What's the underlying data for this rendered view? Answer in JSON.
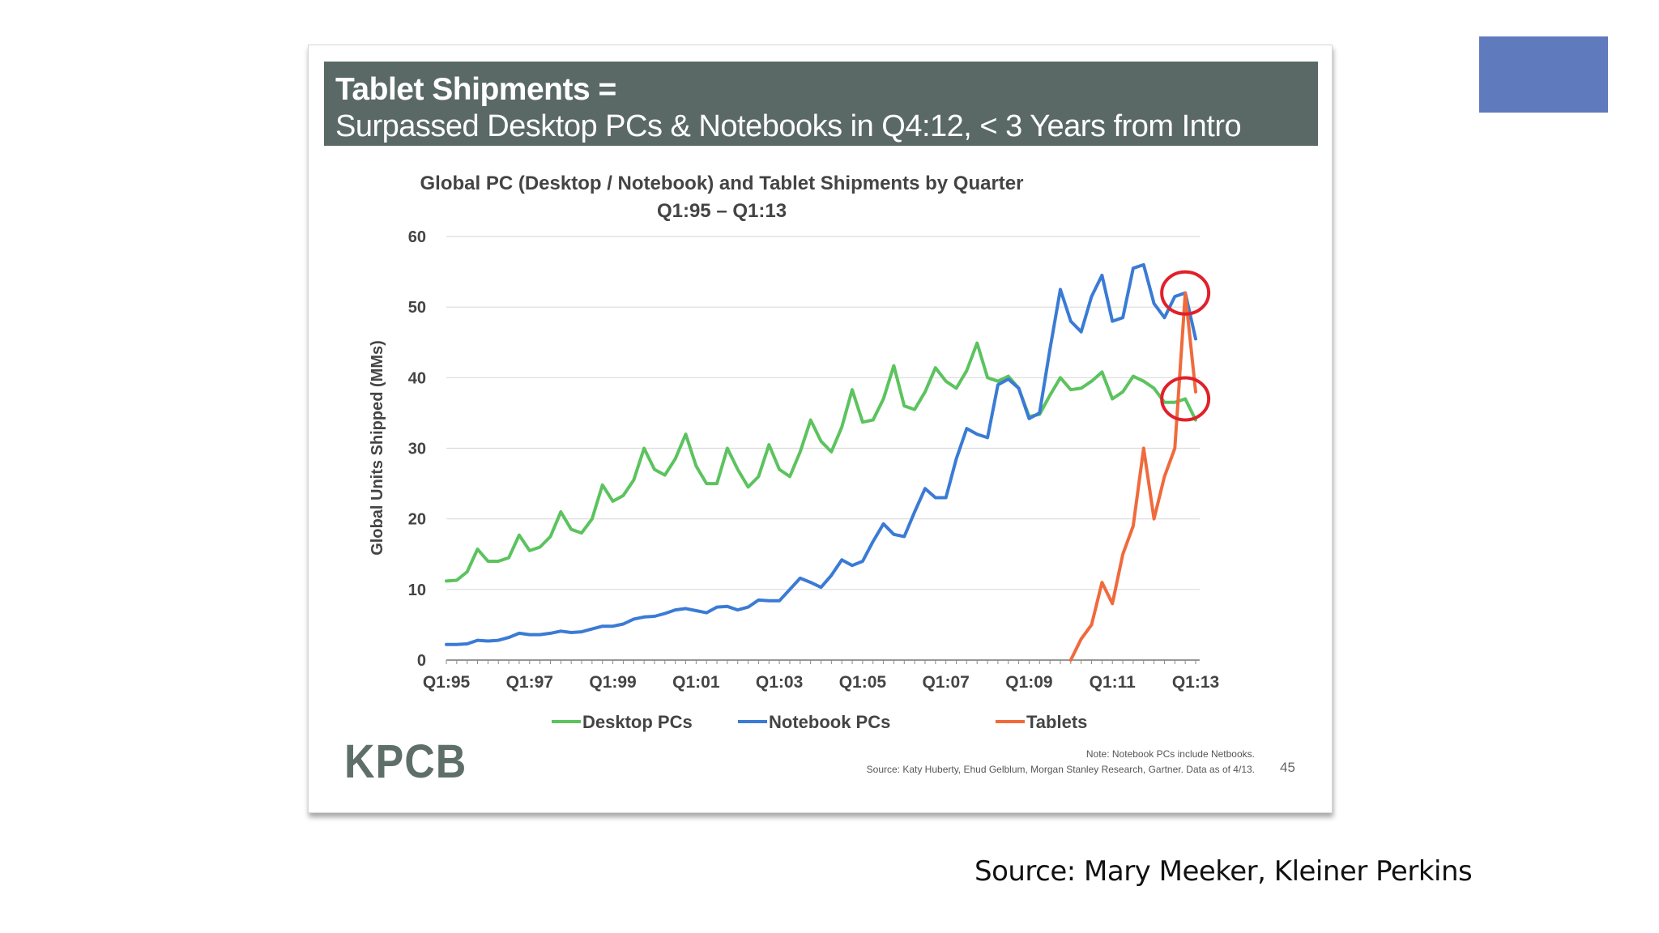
{
  "slide": {
    "banner_line1": "Tablet Shipments =",
    "banner_line2": "Surpassed Desktop PCs & Notebooks in Q4:12, < 3 Years from Intro",
    "logo": "KPCB",
    "note": "Note: Notebook PCs include Netbooks.",
    "source_small": "Source: Katy Huberty, Ehud Gelblum, Morgan Stanley Research, Gartner. Data as of 4/13.",
    "page_number": "45"
  },
  "caption": "Source:  Mary Meeker, Kleiner Perkins",
  "colors": {
    "banner": "#5a6965",
    "desktop": "#5cc35f",
    "notebook": "#3a7bd5",
    "tablets": "#f06a3c",
    "highlight": "#e0202a",
    "corner_square": "#5f7bbd"
  },
  "chart_data": {
    "type": "line",
    "title": "Global PC (Desktop / Notebook) and Tablet Shipments by Quarter",
    "subtitle": "Q1:95 – Q1:13",
    "ylabel": "Global Units Shipped (MMs)",
    "xlabel": "",
    "ylim": [
      0,
      60
    ],
    "yticks": [
      0,
      10,
      20,
      30,
      40,
      50,
      60
    ],
    "xtick_labels": [
      "Q1:95",
      "Q1:97",
      "Q1:99",
      "Q1:01",
      "Q1:03",
      "Q1:05",
      "Q1:07",
      "Q1:09",
      "Q1:11",
      "Q1:13"
    ],
    "legend_position": "bottom",
    "grid": true,
    "series": [
      {
        "name": "Desktop PCs",
        "start": "Q1:95",
        "values": [
          11.2,
          11.3,
          12.5,
          15.7,
          14.0,
          14.0,
          14.5,
          17.7,
          15.5,
          16.0,
          17.5,
          21.0,
          18.5,
          18.0,
          20.0,
          24.8,
          22.5,
          23.3,
          25.5,
          30.0,
          27.0,
          26.2,
          28.5,
          32.0,
          27.5,
          25.0,
          25.0,
          30.0,
          27.0,
          24.5,
          26.0,
          30.5,
          27.0,
          26.0,
          29.5,
          34.0,
          31.0,
          29.5,
          33.0,
          38.3,
          33.7,
          34.0,
          37.0,
          41.7,
          36.0,
          35.5,
          38.0,
          41.4,
          39.5,
          38.5,
          41.0,
          44.9,
          40.0,
          39.5,
          40.2,
          38.5,
          34.5,
          34.8,
          37.5,
          40.0,
          38.3,
          38.5,
          39.5,
          40.8,
          37.0,
          38.0,
          40.2,
          39.5,
          38.5,
          36.5,
          36.5,
          37.0,
          34.0
        ]
      },
      {
        "name": "Notebook PCs",
        "start": "Q1:95",
        "values": [
          2.2,
          2.2,
          2.3,
          2.8,
          2.7,
          2.8,
          3.2,
          3.8,
          3.6,
          3.6,
          3.8,
          4.1,
          3.9,
          4.0,
          4.4,
          4.8,
          4.8,
          5.1,
          5.8,
          6.1,
          6.2,
          6.6,
          7.1,
          7.3,
          7.0,
          6.7,
          7.5,
          7.6,
          7.1,
          7.5,
          8.5,
          8.4,
          8.4,
          10.0,
          11.6,
          11.0,
          10.3,
          12.0,
          14.2,
          13.4,
          14.0,
          16.8,
          19.3,
          17.8,
          17.5,
          21.0,
          24.3,
          23.0,
          23.0,
          28.5,
          32.8,
          32.0,
          31.5,
          39.0,
          39.8,
          38.5,
          34.2,
          35.0,
          44.0,
          52.5,
          48.0,
          46.5,
          51.5,
          54.5,
          48.0,
          48.5,
          55.5,
          56.0,
          50.5,
          48.5,
          51.5,
          52.0,
          45.5
        ]
      },
      {
        "name": "Tablets",
        "start": "Q1:10",
        "values": [
          0.0,
          3.0,
          5.0,
          11.0,
          8.0,
          15.0,
          19.0,
          30.0,
          20.0,
          26.0,
          30.0,
          52.0,
          38.0
        ]
      }
    ],
    "annotations": [
      "circle on Q4:12 crossing of Notebook PCs",
      "circle on Q4:12 crossing of Desktop PCs"
    ]
  }
}
